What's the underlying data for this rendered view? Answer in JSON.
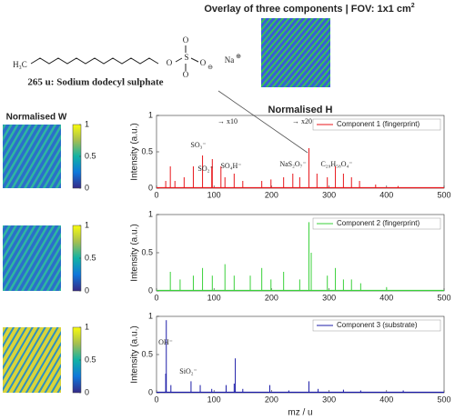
{
  "figure": {
    "overlay_title": "Overlay of three components | FOV: 1x1 cm",
    "overlay_superscript": "2",
    "molecule_label": "265 u: Sodium dodecyl sulphate",
    "molecule_tail": "H₃C",
    "atoms": [
      "O",
      "S",
      "O",
      "O",
      "O",
      "Na"
    ],
    "charges": [
      "⊖",
      "⊕"
    ],
    "w_title": "Normalised W",
    "h_title": "Normalised H",
    "colorbars": [
      {
        "lim": [
          0,
          1
        ],
        "ticks": [
          0,
          0.5,
          1
        ]
      },
      {
        "lim": [
          0,
          1
        ],
        "ticks": [
          0,
          0.5,
          1
        ]
      },
      {
        "lim": [
          0,
          1
        ],
        "ticks": [
          0,
          0.5,
          1
        ]
      }
    ]
  },
  "chart_data": [
    {
      "type": "stem",
      "y_label": "Intensity (a.u.)",
      "annotations": [
        "→ x10",
        "→ x20",
        "SO₃⁻",
        "SO₂⁻",
        "SO₄H⁻",
        "NaS₂O₇⁻",
        "C₂₉H₅₈O₄⁻"
      ],
      "series": [
        {
          "name": "Component 1 (fingerprint)",
          "color": "#e8161b",
          "x": [
            16,
            24,
            32,
            48,
            64,
            80,
            96,
            97,
            112,
            119,
            135,
            150,
            183,
            199,
            221,
            237,
            249,
            265,
            279,
            297,
            311,
            325,
            339,
            353,
            381,
            420
          ],
          "values": [
            0.1,
            0.3,
            0.1,
            0.15,
            0.3,
            0.45,
            0.3,
            0.4,
            0.3,
            0.15,
            0.2,
            0.1,
            0.1,
            0.12,
            0.15,
            0.2,
            0.15,
            0.55,
            0.2,
            0.15,
            0.3,
            0.2,
            0.15,
            0.1,
            0.05,
            0.03
          ]
        }
      ],
      "xlim": [
        0,
        500
      ],
      "xticks": [
        0,
        100,
        200,
        300,
        400,
        500
      ],
      "ylim": [
        0,
        1
      ],
      "yticks": [
        0,
        0.5,
        1
      ]
    },
    {
      "type": "stem",
      "y_label": "Intensity (a.u.)",
      "series": [
        {
          "name": "Component 2 (fingerprint)",
          "color": "#3ad13a",
          "x": [
            24,
            41,
            64,
            80,
            97,
            119,
            135,
            163,
            183,
            199,
            221,
            249,
            265,
            269,
            297,
            311,
            325,
            339,
            355,
            400
          ],
          "values": [
            0.25,
            0.15,
            0.2,
            0.3,
            0.2,
            0.35,
            0.2,
            0.2,
            0.3,
            0.15,
            0.25,
            0.15,
            0.9,
            0.5,
            0.2,
            0.3,
            0.15,
            0.15,
            0.1,
            0.05
          ]
        }
      ],
      "xlim": [
        0,
        500
      ],
      "xticks": [
        0,
        100,
        200,
        300,
        400,
        500
      ],
      "ylim": [
        0,
        1
      ],
      "yticks": [
        0,
        0.5,
        1
      ]
    },
    {
      "type": "stem",
      "y_label": "Intensity (a.u.)",
      "x_label": "mz / u",
      "annotations": [
        "OH⁻",
        "SiO₂⁻"
      ],
      "series": [
        {
          "name": "Component 3 (substrate)",
          "color": "#1c1ca8",
          "x": [
            16,
            17,
            25,
            60,
            76,
            96,
            121,
            135,
            137,
            150,
            197,
            230,
            265,
            281,
            325,
            355,
            429
          ],
          "values": [
            0.25,
            0.95,
            0.1,
            0.15,
            0.1,
            0.05,
            0.1,
            0.12,
            0.45,
            0.05,
            0.1,
            0.03,
            0.15,
            0.05,
            0.04,
            0.03,
            0.03
          ]
        }
      ],
      "xlim": [
        0,
        500
      ],
      "xticks": [
        0,
        100,
        200,
        300,
        400,
        500
      ],
      "ylim": [
        0,
        1
      ],
      "yticks": [
        0,
        0.5,
        1
      ]
    }
  ]
}
